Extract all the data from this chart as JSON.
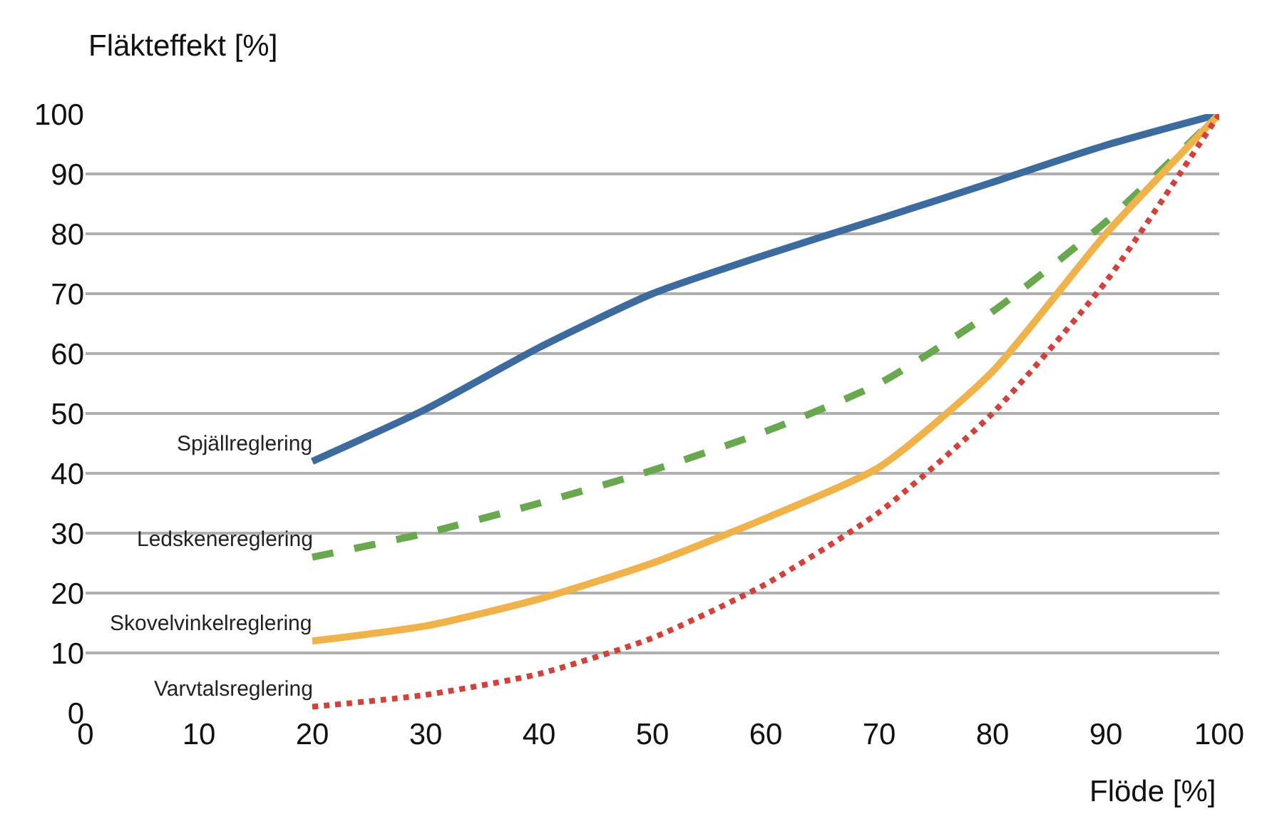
{
  "chart_data": {
    "type": "line",
    "xlabel": "Flöde [%]",
    "ylabel": "Fläkteffekt [%]",
    "x": [
      20,
      30,
      40,
      50,
      60,
      70,
      80,
      90,
      100
    ],
    "series": [
      {
        "name": "Spjällreglering",
        "color": "#3d6b9e",
        "line_style": "solid",
        "values": [
          42,
          50.7,
          61,
          70,
          76.5,
          82.5,
          88.6,
          94.8,
          100
        ]
      },
      {
        "name": "Ledskenereglering",
        "color": "#6aa84f",
        "line_style": "dashed",
        "values": [
          26,
          30,
          35,
          40.5,
          47,
          55,
          67,
          82,
          100
        ]
      },
      {
        "name": "Skovelvinkelreglering",
        "color": "#f0b24a",
        "line_style": "solid",
        "values": [
          12,
          14.5,
          19,
          25,
          32.5,
          41,
          57,
          80,
          100
        ]
      },
      {
        "name": "Varvtalsreglering",
        "color": "#d0423b",
        "line_style": "dotted",
        "values": [
          1,
          3,
          6.5,
          12.5,
          21.5,
          33.5,
          50,
          72,
          100
        ]
      }
    ],
    "xlim": [
      0,
      100
    ],
    "ylim": [
      0,
      100
    ],
    "xticks": [
      0,
      10,
      20,
      30,
      40,
      50,
      60,
      70,
      80,
      90,
      100
    ],
    "yticks": [
      0,
      10,
      20,
      30,
      40,
      50,
      60,
      70,
      80,
      90,
      100
    ],
    "grid": "y",
    "legend": false
  }
}
